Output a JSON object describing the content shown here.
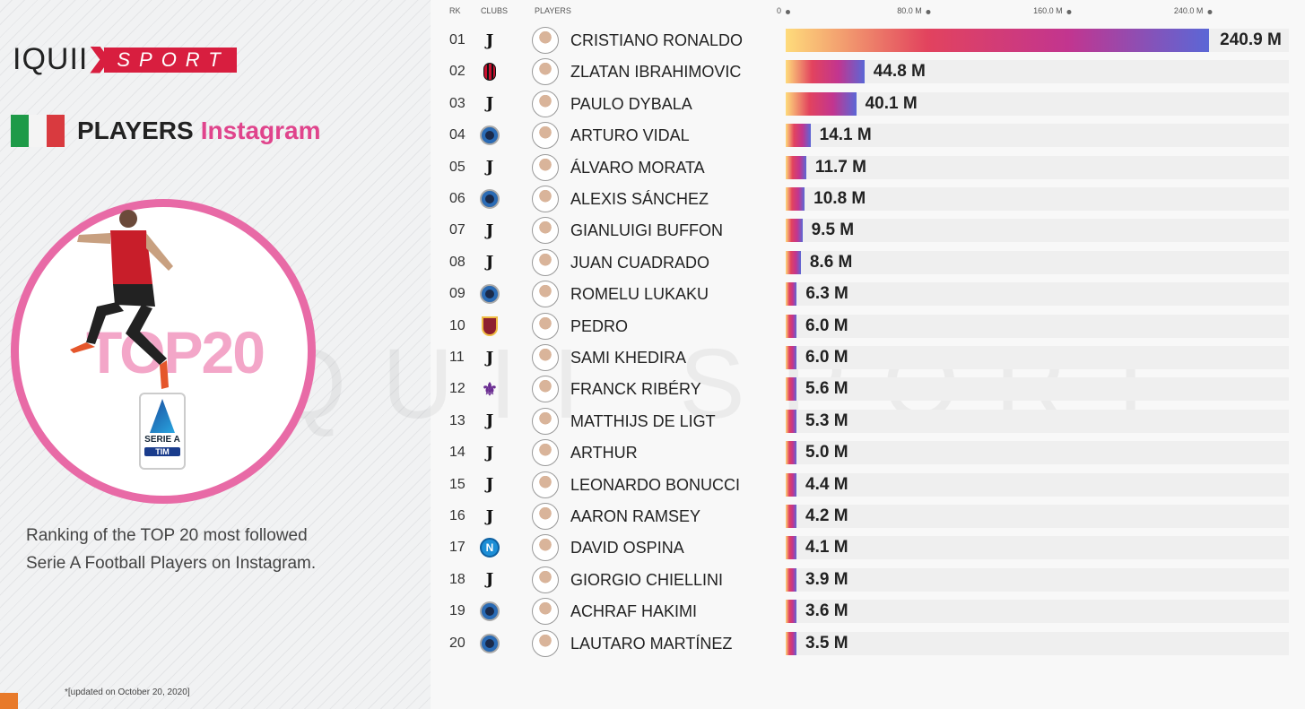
{
  "brand": {
    "iquii": "IQUII",
    "sport": "SPORT",
    "watermark": "IQUII SPORT"
  },
  "title": {
    "main": "PLAYERS",
    "sub": "Instagram"
  },
  "badge": {
    "top": "TOP20",
    "league": "SERIE A",
    "sponsor": "TIM"
  },
  "description": "Ranking of the TOP 20 most followed Serie A Football Players on Instagram.",
  "footnote": "*[updated on October 20, 2020]",
  "colors": {
    "pink": "#e0448c",
    "red": "#d81e3f",
    "grad": [
      "#fedb7b",
      "#e2435e",
      "#c2358f",
      "#5b67d6"
    ]
  },
  "chart_data": {
    "type": "bar",
    "orientation": "horizontal",
    "unit": "M",
    "headers": {
      "rank": "RK",
      "club": "CLUBS",
      "player": "PLAYERS"
    },
    "xticks": [
      "0",
      "80.0 M",
      "160.0 M",
      "240.0 M"
    ],
    "xtick_values": [
      0,
      80,
      160,
      240
    ],
    "xlim": [
      0,
      286
    ],
    "rows": [
      {
        "rank": "01",
        "club": "juventus",
        "player": "CRISTIANO RONALDO",
        "value": 240.9,
        "label": "240.9 M"
      },
      {
        "rank": "02",
        "club": "milan",
        "player": "ZLATAN IBRAHIMOVIC",
        "value": 44.8,
        "label": "44.8 M"
      },
      {
        "rank": "03",
        "club": "juventus",
        "player": "PAULO DYBALA",
        "value": 40.1,
        "label": "40.1 M"
      },
      {
        "rank": "04",
        "club": "inter",
        "player": "ARTURO VIDAL",
        "value": 14.1,
        "label": "14.1 M"
      },
      {
        "rank": "05",
        "club": "juventus",
        "player": "ÁLVARO MORATA",
        "value": 11.7,
        "label": "11.7 M"
      },
      {
        "rank": "06",
        "club": "inter",
        "player": "ALEXIS SÁNCHEZ",
        "value": 10.8,
        "label": "10.8 M"
      },
      {
        "rank": "07",
        "club": "juventus",
        "player": "GIANLUIGI BUFFON",
        "value": 9.5,
        "label": "9.5 M"
      },
      {
        "rank": "08",
        "club": "juventus",
        "player": "JUAN CUADRADO",
        "value": 8.6,
        "label": "8.6 M"
      },
      {
        "rank": "09",
        "club": "inter",
        "player": "ROMELU LUKAKU",
        "value": 6.3,
        "label": "6.3 M"
      },
      {
        "rank": "10",
        "club": "roma",
        "player": "PEDRO",
        "value": 6.0,
        "label": "6.0 M"
      },
      {
        "rank": "11",
        "club": "juventus",
        "player": "SAMI KHEDIRA",
        "value": 6.0,
        "label": "6.0 M"
      },
      {
        "rank": "12",
        "club": "fiorentina",
        "player": "FRANCK RIBÉRY",
        "value": 5.6,
        "label": "5.6 M"
      },
      {
        "rank": "13",
        "club": "juventus",
        "player": "MATTHIJS DE LIGT",
        "value": 5.3,
        "label": "5.3 M"
      },
      {
        "rank": "14",
        "club": "juventus",
        "player": "ARTHUR",
        "value": 5.0,
        "label": "5.0 M"
      },
      {
        "rank": "15",
        "club": "juventus",
        "player": "LEONARDO BONUCCI",
        "value": 4.4,
        "label": "4.4 M"
      },
      {
        "rank": "16",
        "club": "juventus",
        "player": "AARON RAMSEY",
        "value": 4.2,
        "label": "4.2 M"
      },
      {
        "rank": "17",
        "club": "napoli",
        "player": "DAVID OSPINA",
        "value": 4.1,
        "label": "4.1 M"
      },
      {
        "rank": "18",
        "club": "juventus",
        "player": "GIORGIO CHIELLINI",
        "value": 3.9,
        "label": "3.9 M"
      },
      {
        "rank": "19",
        "club": "inter",
        "player": "ACHRAF HAKIMI",
        "value": 3.6,
        "label": "3.6 M"
      },
      {
        "rank": "20",
        "club": "inter",
        "player": "LAUTARO MARTÍNEZ",
        "value": 3.5,
        "label": "3.5 M"
      }
    ]
  }
}
